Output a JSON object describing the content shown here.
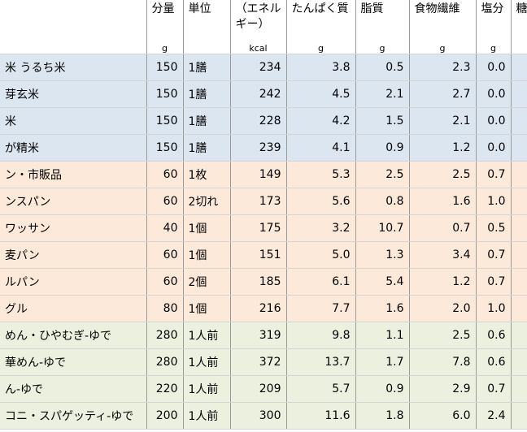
{
  "headers": [
    "分量",
    "単位",
    "（エネル\nギー）",
    "たんぱく質",
    "脂質",
    "食物繊維",
    "塩分",
    "糖"
  ],
  "units": [
    "g",
    null,
    "kcal",
    "g",
    "g",
    "g",
    "g",
    null
  ],
  "rows": [
    {
      "name": "米 うるち米",
      "cells": [
        "150",
        "1膳",
        "234",
        "3.8",
        "0.5",
        "2.3",
        "0.0"
      ]
    },
    {
      "name": "芽玄米",
      "cells": [
        "150",
        "1膳",
        "242",
        "4.5",
        "2.1",
        "2.7",
        "0.0"
      ]
    },
    {
      "name": "米",
      "cells": [
        "150",
        "1膳",
        "228",
        "4.2",
        "1.5",
        "2.1",
        "0.0"
      ]
    },
    {
      "name": "が精米",
      "cells": [
        "150",
        "1膳",
        "239",
        "4.1",
        "0.9",
        "1.2",
        "0.0"
      ]
    },
    {
      "name": "ン・市販品",
      "cells": [
        "60",
        "1枚",
        "149",
        "5.3",
        "2.5",
        "2.5",
        "0.7"
      ]
    },
    {
      "name": "ンスパン",
      "cells": [
        "60",
        "2切れ",
        "173",
        "5.6",
        "0.8",
        "1.6",
        "1.0"
      ]
    },
    {
      "name": "ワッサン",
      "cells": [
        "40",
        "1個",
        "175",
        "3.2",
        "10.7",
        "0.7",
        "0.5"
      ]
    },
    {
      "name": "麦パン",
      "cells": [
        "60",
        "1個",
        "151",
        "5.0",
        "1.3",
        "3.4",
        "0.7"
      ]
    },
    {
      "name": "ルパン",
      "cells": [
        "60",
        "2個",
        "185",
        "6.1",
        "5.4",
        "1.2",
        "0.7"
      ]
    },
    {
      "name": "グル",
      "cells": [
        "80",
        "1個",
        "216",
        "7.7",
        "1.6",
        "2.0",
        "1.0"
      ]
    },
    {
      "name": "めん・ひやむぎ-ゆで",
      "cells": [
        "280",
        "1人前",
        "319",
        "9.8",
        "1.1",
        "2.5",
        "0.6"
      ]
    },
    {
      "name": "華めん-ゆで",
      "cells": [
        "280",
        "1人前",
        "372",
        "13.7",
        "1.7",
        "7.8",
        "0.6"
      ]
    },
    {
      "name": "ん-ゆで",
      "cells": [
        "220",
        "1人前",
        "209",
        "5.7",
        "0.9",
        "2.9",
        "0.7"
      ]
    },
    {
      "name": "コニ・スパゲッティ-ゆで",
      "cells": [
        "200",
        "1人前",
        "300",
        "11.6",
        "1.8",
        "6.0",
        "2.4"
      ]
    }
  ]
}
